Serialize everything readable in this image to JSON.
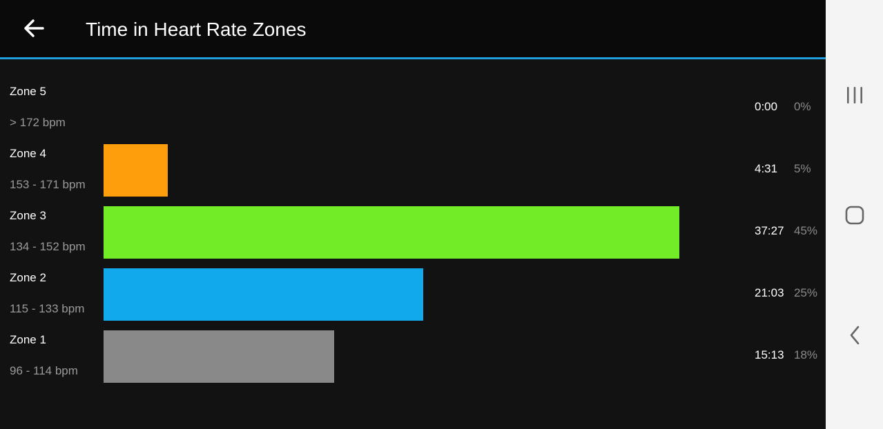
{
  "header": {
    "title": "Time in Heart Rate Zones",
    "back_icon": "arrow-left-icon",
    "accent_color": "#1e9fe0"
  },
  "zones": [
    {
      "name": "Zone 5",
      "range": "> 172 bpm",
      "time": "0:00",
      "percent": "0%",
      "percent_value": 0,
      "color": "#8a8a8a"
    },
    {
      "name": "Zone 4",
      "range": "153 - 171 bpm",
      "time": "4:31",
      "percent": "5%",
      "percent_value": 5,
      "color": "#ff9e0c"
    },
    {
      "name": "Zone 3",
      "range": "134 - 152 bpm",
      "time": "37:27",
      "percent": "45%",
      "percent_value": 45,
      "color": "#72ec27"
    },
    {
      "name": "Zone 2",
      "range": "115 - 133 bpm",
      "time": "21:03",
      "percent": "25%",
      "percent_value": 25,
      "color": "#11a8ec"
    },
    {
      "name": "Zone 1",
      "range": "96 - 114 bpm",
      "time": "15:13",
      "percent": "18%",
      "percent_value": 18,
      "color": "#898989"
    }
  ],
  "system_nav": {
    "recents_icon": "recents-icon",
    "home_icon": "home-icon",
    "back_icon": "back-chevron-icon"
  }
}
